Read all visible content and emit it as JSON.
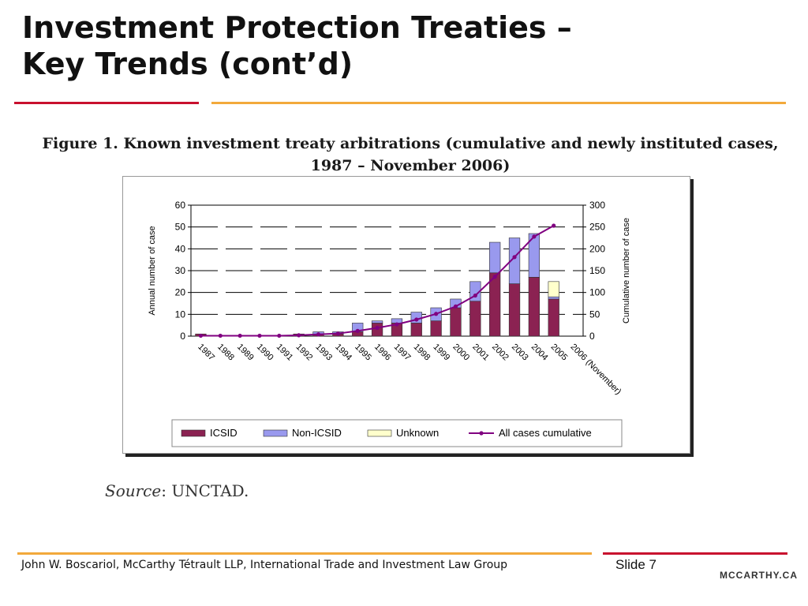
{
  "slide": {
    "title_line1": "Investment Protection Treaties –",
    "title_line2": "Key Trends (cont’d)",
    "figure_caption_line1": "Figure 1. Known investment treaty arbitrations (cumulative and newly instituted cases,",
    "figure_caption_line2": "1987 – November 2006)",
    "source_label": "Source",
    "source_value": ": UNCTAD.",
    "footer_text": "John W. Boscariol, McCarthy Tétrault LLP, International Trade and Investment Law Group",
    "slide_number": "Slide 7",
    "brand": "MCCARTHY.CA"
  },
  "colors": {
    "title_rule_left": "#c8102e",
    "title_rule_right": "#f2a93b",
    "footer_rule_left": "#f2a93b",
    "footer_rule_right": "#c8102e",
    "icsid": "#8b2252",
    "non_icsid": "#9999ee",
    "unknown": "#ffffcc",
    "cumulative_line": "#800080"
  },
  "chart_data": {
    "type": "bar",
    "stacked": true,
    "categories": [
      "1987",
      "1988",
      "1989",
      "1990",
      "1991",
      "1992",
      "1993",
      "1994",
      "1995",
      "1996",
      "1997",
      "1998",
      "1999",
      "2000",
      "2001",
      "2002",
      "2003",
      "2004",
      "2005",
      "2006 (November)"
    ],
    "series": [
      {
        "name": "ICSID",
        "type": "bar",
        "axis": "left",
        "values": [
          1,
          0,
          0,
          0,
          0,
          1,
          1,
          1,
          2,
          6,
          6,
          6,
          7,
          13,
          16,
          29,
          24,
          27,
          17,
          0
        ]
      },
      {
        "name": "Non-ICSID",
        "type": "bar",
        "axis": "left",
        "values": [
          0,
          0,
          0,
          0,
          0,
          0,
          1,
          1,
          4,
          1,
          2,
          5,
          6,
          4,
          9,
          14,
          21,
          20,
          1,
          0
        ]
      },
      {
        "name": "Unknown",
        "type": "bar",
        "axis": "left",
        "values": [
          0,
          0,
          0,
          0,
          0,
          0,
          0,
          0,
          0,
          0,
          0,
          0,
          0,
          0,
          0,
          0,
          0,
          0,
          7,
          0
        ]
      },
      {
        "name": "All cases cumulative",
        "type": "line",
        "axis": "right",
        "values": [
          1,
          1,
          1,
          1,
          1,
          2,
          4,
          6,
          12,
          19,
          27,
          38,
          51,
          68,
          93,
          136,
          181,
          228,
          253,
          null
        ]
      }
    ],
    "ylabel": "Annual number of case",
    "y2label": "Cumulative number of case",
    "ylim": [
      0,
      60
    ],
    "y2lim": [
      0,
      300
    ],
    "yticks": [
      0,
      10,
      20,
      30,
      40,
      50,
      60
    ],
    "y2ticks": [
      0,
      50,
      100,
      150,
      200,
      250,
      300
    ],
    "grid": true,
    "legend_position": "bottom"
  }
}
